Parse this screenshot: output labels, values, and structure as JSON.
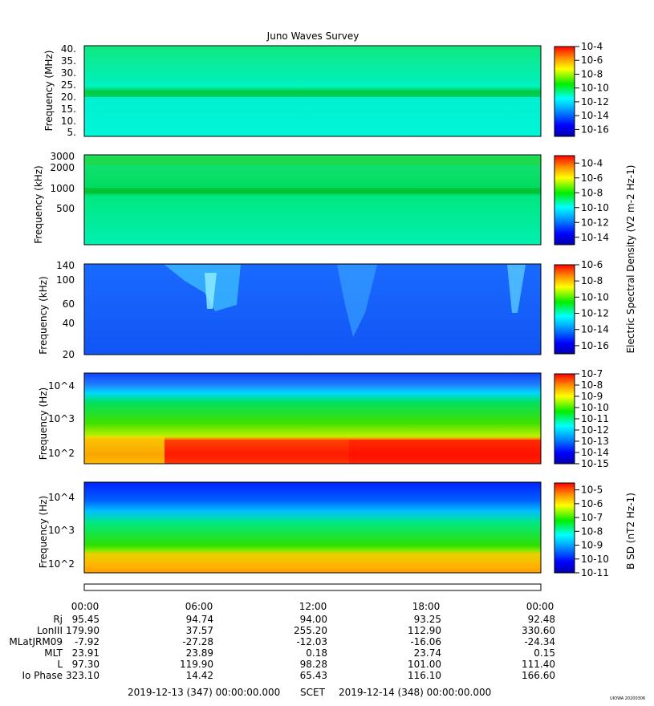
{
  "figure": {
    "title": "Juno Waves Survey",
    "stamp": "UIOWA 20200306"
  },
  "chart_data": [
    {
      "type": "heatmap",
      "title": "Juno Waves Survey",
      "ylabel": "Frequency (MHz)",
      "y_ticks": [
        "40.",
        "35.",
        "30.",
        "25.",
        "20.",
        "15.",
        "10.",
        "5."
      ],
      "ylim": [
        3.5,
        41
      ],
      "colorbar": {
        "ticks": [
          "10-4",
          "10-6",
          "10-8",
          "10-10",
          "10-12",
          "10-14",
          "10-16"
        ],
        "range_exp": [
          -17,
          -4
        ]
      },
      "features": [
        "band near 21 MHz"
      ]
    },
    {
      "type": "heatmap",
      "ylabel": "Frequency (kHz)",
      "y_ticks": [
        "3000",
        "2000",
        "1000",
        "500"
      ],
      "y_scale": "log",
      "colorbar": {
        "ticks": [
          "10-4",
          "10-6",
          "10-8",
          "10-10",
          "10-12",
          "10-14"
        ],
        "range_exp": [
          -15,
          -3
        ]
      },
      "features": [
        "band near 950 kHz",
        "band near 2500 kHz"
      ]
    },
    {
      "type": "heatmap",
      "ylabel": "Frequency (kHz)",
      "y_ticks": [
        "140",
        "100",
        "60",
        "40",
        "20"
      ],
      "y_scale": "log",
      "colorbar": {
        "ticks": [
          "10-6",
          "10-8",
          "10-10",
          "10-12",
          "10-14",
          "10-16"
        ],
        "range_exp": [
          -17,
          -6
        ]
      },
      "features": [
        "bursts near 06:00",
        "bursts near 15:00",
        "burst near 22:30"
      ]
    },
    {
      "type": "heatmap",
      "ylabel": "Frequency (Hz)",
      "y_ticks": [
        "10^4",
        "10^3",
        "10^2"
      ],
      "y_scale": "log",
      "colorbar": {
        "ticks": [
          "10-7",
          "10-8",
          "10-9",
          "10-10",
          "10-11",
          "10-12",
          "10-13",
          "10-14",
          "10-15"
        ],
        "range_exp": [
          -15,
          -7
        ]
      },
      "features": [
        "intense band near 100-200 Hz"
      ]
    },
    {
      "type": "heatmap",
      "ylabel": "Frequency (Hz)",
      "y_ticks": [
        "10^4",
        "10^3",
        "10^2"
      ],
      "y_scale": "log",
      "colorbar": {
        "ticks": [
          "10-5",
          "10-6",
          "10-7",
          "10-8",
          "10-9",
          "10-10",
          "10-11"
        ],
        "range_exp": [
          -11,
          -4.5
        ]
      },
      "colorbar_label": "B SD (nT2 Hz-1)"
    }
  ],
  "shared_colorbar_label": "Electric Spectral Density (V2 m-2 Hz-1)",
  "time_axis": {
    "ticks": [
      "00:00",
      "06:00",
      "12:00",
      "18:00",
      "00:00"
    ]
  },
  "ephemeris": {
    "rows": [
      {
        "label": "Rj",
        "values": [
          "95.45",
          "94.74",
          "94.00",
          "93.25",
          "92.48"
        ]
      },
      {
        "label": "LonIII",
        "values": [
          "179.90",
          "37.57",
          "255.20",
          "112.90",
          "330.60"
        ]
      },
      {
        "label": "MLatJRM09",
        "values": [
          "-7.92",
          "-27.28",
          "-12.03",
          "-16.06",
          "-24.34"
        ]
      },
      {
        "label": "MLT",
        "values": [
          "23.91",
          "23.89",
          "0.18",
          "23.74",
          "0.15"
        ]
      },
      {
        "label": "L",
        "values": [
          "97.30",
          "119.90",
          "98.28",
          "101.00",
          "111.40"
        ]
      },
      {
        "label": "Io Phase",
        "values": [
          "323.10",
          "14.42",
          "65.43",
          "116.10",
          "166.60"
        ]
      }
    ]
  },
  "footer": {
    "start": "2019-12-13 (347) 00:00:00.000",
    "mid": "SCET",
    "end": "2019-12-14 (348) 00:00:00.000"
  },
  "colors": {
    "red": "#ff0000",
    "orange": "#ff8800",
    "yellow": "#ffff00",
    "green": "#00ee00",
    "cyan": "#00ffff",
    "blue": "#0000ff",
    "navy": "#0000aa"
  }
}
